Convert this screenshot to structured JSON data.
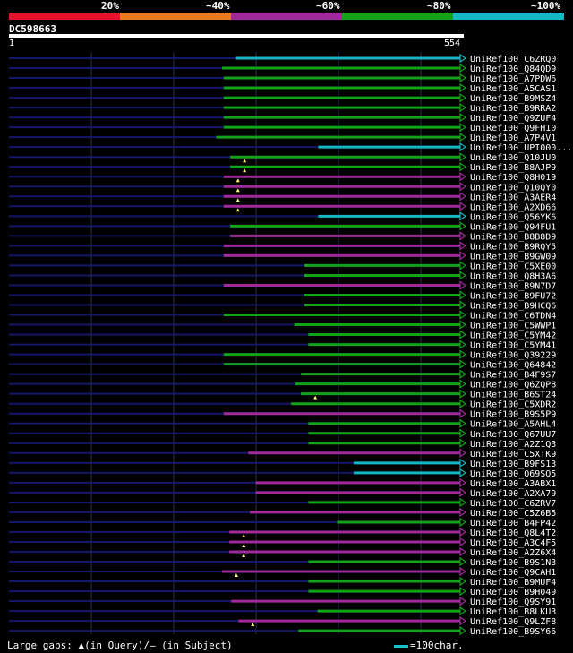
{
  "legend": {
    "colors": [
      "#e8112e",
      "#e67a1c",
      "#a02a9c",
      "#12a31a",
      "#14b7c4"
    ],
    "labels": [
      "20%",
      "~40%",
      "~60%",
      "~80%",
      "~100%"
    ]
  },
  "query": {
    "id": "DC598663",
    "start": "1",
    "end": "554",
    "length": 554
  },
  "hits": [
    {
      "name": "UniRef100_C6ZRQ0",
      "start": 277,
      "color": "#14b7c4"
    },
    {
      "name": "UniRef100_Q84QD9",
      "start": 260,
      "color": "#12a31a"
    },
    {
      "name": "UniRef100_A7PDW6",
      "start": 262,
      "color": "#12a31a"
    },
    {
      "name": "UniRef100_A5CAS1",
      "start": 262,
      "color": "#12a31a"
    },
    {
      "name": "UniRef100_B9MSZ4",
      "start": 262,
      "color": "#12a31a"
    },
    {
      "name": "UniRef100_B9RRA2",
      "start": 262,
      "color": "#12a31a"
    },
    {
      "name": "UniRef100_Q9ZUF4",
      "start": 262,
      "color": "#12a31a"
    },
    {
      "name": "UniRef100_Q9FH10",
      "start": 262,
      "color": "#12a31a"
    },
    {
      "name": "UniRef100_A7P4V1",
      "start": 253,
      "color": "#12a31a"
    },
    {
      "name": "UniRef100_UPI000...",
      "start": 377,
      "color": "#14b7c4"
    },
    {
      "name": "UniRef100_Q10JU0",
      "start": 270,
      "color": "#12a31a"
    },
    {
      "name": "UniRef100_B8AJP9",
      "start": 270,
      "color": "#12a31a"
    },
    {
      "name": "UniRef100_Q8H019",
      "start": 262,
      "color": "#a02a9c"
    },
    {
      "name": "UniRef100_Q10QY0",
      "start": 262,
      "color": "#a02a9c"
    },
    {
      "name": "UniRef100_A3AER4",
      "start": 262,
      "color": "#a02a9c"
    },
    {
      "name": "UniRef100_A2XD66",
      "start": 262,
      "color": "#a02a9c"
    },
    {
      "name": "UniRef100_Q56YK6",
      "start": 377,
      "color": "#14b7c4"
    },
    {
      "name": "UniRef100_Q94FU1",
      "start": 270,
      "color": "#12a31a"
    },
    {
      "name": "UniRef100_B8B8D9",
      "start": 270,
      "color": "#a02a9c"
    },
    {
      "name": "UniRef100_B9RQY5",
      "start": 262,
      "color": "#a02a9c"
    },
    {
      "name": "UniRef100_B9GW09",
      "start": 262,
      "color": "#a02a9c"
    },
    {
      "name": "UniRef100_C5XE00",
      "start": 360,
      "color": "#12a31a"
    },
    {
      "name": "UniRef100_Q8H3A6",
      "start": 360,
      "color": "#12a31a"
    },
    {
      "name": "UniRef100_B9N7D7",
      "start": 262,
      "color": "#a02a9c"
    },
    {
      "name": "UniRef100_B9FU72",
      "start": 360,
      "color": "#12a31a"
    },
    {
      "name": "UniRef100_B9HCQ6",
      "start": 360,
      "color": "#12a31a"
    },
    {
      "name": "UniRef100_C6TDN4",
      "start": 262,
      "color": "#12a31a"
    },
    {
      "name": "UniRef100_C5WWP1",
      "start": 348,
      "color": "#12a31a"
    },
    {
      "name": "UniRef100_C5YM42",
      "start": 365,
      "color": "#12a31a"
    },
    {
      "name": "UniRef100_C5YM41",
      "start": 365,
      "color": "#12a31a"
    },
    {
      "name": "UniRef100_Q39229",
      "start": 262,
      "color": "#12a31a"
    },
    {
      "name": "UniRef100_Q64842",
      "start": 262,
      "color": "#12a31a"
    },
    {
      "name": "UniRef100_B4F9S7",
      "start": 356,
      "color": "#12a31a"
    },
    {
      "name": "UniRef100_Q6ZQP8",
      "start": 349,
      "color": "#12a31a"
    },
    {
      "name": "UniRef100_B6ST24",
      "start": 356,
      "color": "#12a31a"
    },
    {
      "name": "UniRef100_C5XDR2",
      "start": 344,
      "color": "#12a31a"
    },
    {
      "name": "UniRef100_B9S5P9",
      "start": 262,
      "color": "#a02a9c"
    },
    {
      "name": "UniRef100_A5AHL4",
      "start": 365,
      "color": "#12a31a"
    },
    {
      "name": "UniRef100_Q67UU7",
      "start": 365,
      "color": "#12a31a"
    },
    {
      "name": "UniRef100_A2Z1Q3",
      "start": 365,
      "color": "#12a31a"
    },
    {
      "name": "UniRef100_C5XTK9",
      "start": 292,
      "color": "#a02a9c"
    },
    {
      "name": "UniRef100_B9FS13",
      "start": 420,
      "color": "#14b7c4"
    },
    {
      "name": "UniRef100_Q69SQ5",
      "start": 420,
      "color": "#14b7c4"
    },
    {
      "name": "UniRef100_A3ABX1",
      "start": 301,
      "color": "#a02a9c"
    },
    {
      "name": "UniRef100_A2XA79",
      "start": 301,
      "color": "#a02a9c"
    },
    {
      "name": "UniRef100_C6ZRV7",
      "start": 365,
      "color": "#12a31a"
    },
    {
      "name": "UniRef100_C5Z6B5",
      "start": 294,
      "color": "#a02a9c"
    },
    {
      "name": "UniRef100_B4FP42",
      "start": 400,
      "color": "#12a31a"
    },
    {
      "name": "UniRef100_Q8L4T2",
      "start": 269,
      "color": "#a02a9c"
    },
    {
      "name": "UniRef100_A3C4F5",
      "start": 269,
      "color": "#a02a9c"
    },
    {
      "name": "UniRef100_A2Z6X4",
      "start": 269,
      "color": "#a02a9c"
    },
    {
      "name": "UniRef100_B9S1N3",
      "start": 365,
      "color": "#12a31a"
    },
    {
      "name": "UniRef100_Q9CAH1",
      "start": 260,
      "color": "#a02a9c"
    },
    {
      "name": "UniRef100_B9MUF4",
      "start": 365,
      "color": "#12a31a"
    },
    {
      "name": "UniRef100_B9H049",
      "start": 365,
      "color": "#12a31a"
    },
    {
      "name": "UniRef100_Q9SY91",
      "start": 271,
      "color": "#a02a9c"
    },
    {
      "name": "UniRef100_B8LKU3",
      "start": 376,
      "color": "#12a31a"
    },
    {
      "name": "UniRef100_Q9LZF8",
      "start": 280,
      "color": "#a02a9c"
    },
    {
      "name": "UniRef100_B9SY66",
      "start": 353,
      "color": "#12a31a"
    }
  ],
  "query_gaps": [
    10,
    11,
    12,
    13,
    14,
    15,
    34,
    48,
    49,
    50,
    52,
    57
  ],
  "footer": {
    "gaps_label": "Large gaps: ▲(in Query)/– (in Subject)",
    "scale_label": "=100char.",
    "scale_color": "#19c0cc"
  }
}
